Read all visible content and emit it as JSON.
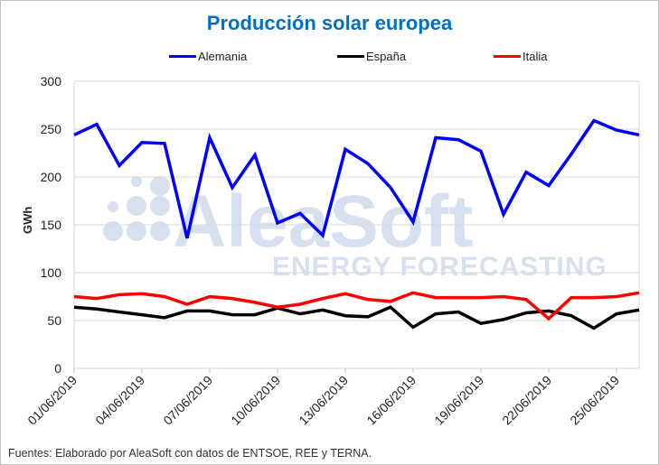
{
  "chart_data": {
    "type": "line",
    "title": "Producción solar europea",
    "ylabel": "GWh",
    "xlabel": "",
    "ylim": [
      0,
      300
    ],
    "yticks": [
      0,
      50,
      100,
      150,
      200,
      250,
      300
    ],
    "grid": true,
    "legend_position": "top",
    "x": [
      "01/06/2019",
      "02/06/2019",
      "03/06/2019",
      "04/06/2019",
      "05/06/2019",
      "06/06/2019",
      "07/06/2019",
      "08/06/2019",
      "09/06/2019",
      "10/06/2019",
      "11/06/2019",
      "12/06/2019",
      "13/06/2019",
      "14/06/2019",
      "15/06/2019",
      "16/06/2019",
      "17/06/2019",
      "18/06/2019",
      "19/06/2019",
      "20/06/2019",
      "21/06/2019",
      "22/06/2019",
      "23/06/2019",
      "24/06/2019",
      "25/06/2019",
      "26/06/2019"
    ],
    "xtick_labels": [
      "01/06/2019",
      "04/06/2019",
      "07/06/2019",
      "10/06/2019",
      "13/06/2019",
      "16/06/2019",
      "19/06/2019",
      "22/06/2019",
      "25/06/2019"
    ],
    "series": [
      {
        "name": "Alemania",
        "color": "#0000ff",
        "values": [
          244,
          255,
          212,
          236,
          235,
          136,
          241,
          189,
          223,
          152,
          162,
          139,
          229,
          214,
          189,
          153,
          241,
          239,
          227,
          161,
          205,
          191,
          224,
          259,
          249,
          244
        ]
      },
      {
        "name": "España",
        "color": "#000000",
        "values": [
          64,
          62,
          59,
          56,
          53,
          60,
          60,
          56,
          56,
          63,
          57,
          61,
          55,
          54,
          64,
          43,
          57,
          59,
          47,
          51,
          58,
          60,
          55,
          42,
          57,
          61
        ]
      },
      {
        "name": "Italia",
        "color": "#ff0000",
        "values": [
          75,
          73,
          77,
          78,
          75,
          67,
          75,
          73,
          69,
          64,
          67,
          73,
          78,
          72,
          70,
          79,
          74,
          74,
          74,
          75,
          72,
          52,
          74,
          74,
          75,
          79
        ]
      }
    ]
  },
  "watermark": {
    "brand": "AleaSoft",
    "tagline": "ENERGY FORECASTING"
  },
  "source": "Fuentes: Elaborado por AleaSoft con datos de ENTSOE, REE y TERNA."
}
